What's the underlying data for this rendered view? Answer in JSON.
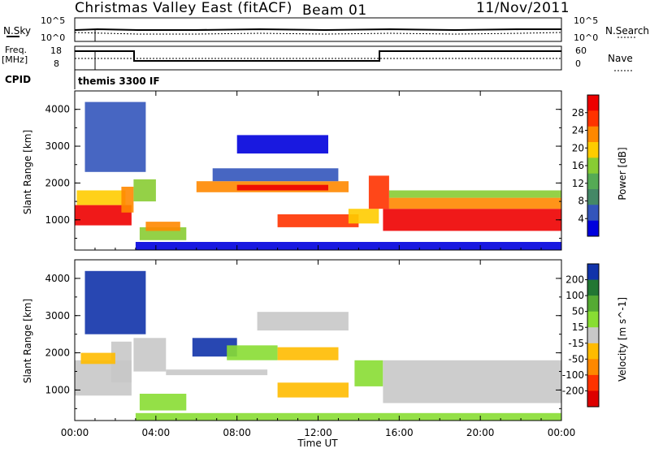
{
  "header": {
    "title": "Christmas Valley East (fitACF)",
    "beam": "Beam 01",
    "date": "11/Nov/2011"
  },
  "status_panels": {
    "nsky_label": "N.Sky",
    "nsky_ticks": [
      "10^5",
      "10^0"
    ],
    "nsearch_label": "N.Search",
    "nsearch_ticks": [
      "10^5",
      "10^0"
    ],
    "freq_label_1": "Freq.",
    "freq_label_2": "[MHz]",
    "freq_ticks": [
      "18",
      "8"
    ],
    "nave_label": "Nave",
    "nave_ticks": [
      "60",
      "0"
    ],
    "cpid_label": "CPID",
    "cpid_value": "themis 3300 IF"
  },
  "chart_data": [
    {
      "type": "heatmap",
      "panel": "power",
      "xlabel": "",
      "ylabel": "Slant Range [km]",
      "xlim": [
        0,
        24
      ],
      "ylim": [
        180,
        4500
      ],
      "yticks": [
        "1000",
        "2000",
        "3000",
        "4000"
      ],
      "colorbar_label": "Power [dB]",
      "colorbar_ticks": [
        "4",
        "8",
        "12",
        "16",
        "20",
        "24",
        "28"
      ],
      "colorbar_range": [
        0,
        32
      ],
      "colors": [
        "#0000dd",
        "#3355bb",
        "#448866",
        "#55aa55",
        "#88cc33",
        "#ffcc00",
        "#ff8800",
        "#ff3300",
        "#ee0000"
      ],
      "regions": [
        {
          "t0": 0.0,
          "t1": 2.8,
          "r0": 850,
          "r1": 1400,
          "c": 8
        },
        {
          "t0": 0.1,
          "t1": 2.5,
          "r0": 1400,
          "r1": 1800,
          "c": 5
        },
        {
          "t0": 2.3,
          "t1": 2.9,
          "r0": 1200,
          "r1": 1900,
          "c": 6
        },
        {
          "t0": 3.2,
          "t1": 5.5,
          "r0": 450,
          "r1": 800,
          "c": 4
        },
        {
          "t0": 3.5,
          "t1": 5.2,
          "r0": 700,
          "r1": 950,
          "c": 6
        },
        {
          "t0": 2.9,
          "t1": 4.0,
          "r0": 1500,
          "r1": 2100,
          "c": 4
        },
        {
          "t0": 6.0,
          "t1": 13.5,
          "r0": 1750,
          "r1": 2050,
          "c": 6
        },
        {
          "t0": 8.0,
          "t1": 12.5,
          "r0": 1800,
          "r1": 1950,
          "c": 8
        },
        {
          "t0": 6.8,
          "t1": 13.0,
          "r0": 2050,
          "r1": 2400,
          "c": 1
        },
        {
          "t0": 8.0,
          "t1": 12.5,
          "r0": 2800,
          "r1": 3300,
          "c": 0
        },
        {
          "t0": 10.0,
          "t1": 14.0,
          "r0": 800,
          "r1": 1150,
          "c": 7
        },
        {
          "t0": 13.5,
          "t1": 15.0,
          "r0": 900,
          "r1": 1300,
          "c": 5
        },
        {
          "t0": 14.5,
          "t1": 15.5,
          "r0": 1300,
          "r1": 2200,
          "c": 7
        },
        {
          "t0": 15.2,
          "t1": 24.0,
          "r0": 700,
          "r1": 1300,
          "c": 8
        },
        {
          "t0": 15.5,
          "t1": 24.0,
          "r0": 1300,
          "r1": 1600,
          "c": 6
        },
        {
          "t0": 15.5,
          "t1": 24.0,
          "r0": 1600,
          "r1": 1800,
          "c": 4
        },
        {
          "t0": 0.5,
          "t1": 3.5,
          "r0": 2300,
          "r1": 4200,
          "c": 1
        },
        {
          "t0": 3.0,
          "t1": 24.0,
          "r0": 180,
          "r1": 400,
          "c": 0
        }
      ]
    },
    {
      "type": "heatmap",
      "panel": "velocity",
      "xlabel": "Time UT",
      "ylabel": "Slant Range [km]",
      "xlim": [
        0,
        24
      ],
      "ylim": [
        180,
        4500
      ],
      "xticks": [
        "00:00",
        "04:00",
        "08:00",
        "12:00",
        "16:00",
        "20:00",
        "00:00"
      ],
      "yticks": [
        "1000",
        "2000",
        "3000",
        "4000"
      ],
      "colorbar_label": "Velocity [m s^-1]",
      "colorbar_ticks": [
        "200",
        "100",
        "50",
        "15",
        "-15",
        "-50",
        "-100",
        "-200"
      ],
      "colors": [
        "#1133aa",
        "#227733",
        "#55aa33",
        "#88dd33",
        "#c8c8c8",
        "#ffbb00",
        "#ff8800",
        "#ff3300",
        "#dd0000"
      ],
      "regions": [
        {
          "t0": 0.0,
          "t1": 2.8,
          "r0": 850,
          "r1": 1800,
          "c": 4
        },
        {
          "t0": 1.8,
          "t1": 2.8,
          "r0": 1200,
          "r1": 2300,
          "c": 4
        },
        {
          "t0": 0.3,
          "t1": 2.0,
          "r0": 1700,
          "r1": 2000,
          "c": 5
        },
        {
          "t0": 3.2,
          "t1": 5.5,
          "r0": 450,
          "r1": 900,
          "c": 3
        },
        {
          "t0": 2.9,
          "t1": 4.5,
          "r0": 1500,
          "r1": 2400,
          "c": 4
        },
        {
          "t0": 5.8,
          "t1": 8.0,
          "r0": 1900,
          "r1": 2400,
          "c": 0
        },
        {
          "t0": 7.5,
          "t1": 10.0,
          "r0": 1800,
          "r1": 2200,
          "c": 3
        },
        {
          "t0": 10.0,
          "t1": 13.0,
          "r0": 1800,
          "r1": 2150,
          "c": 5
        },
        {
          "t0": 9.0,
          "t1": 13.5,
          "r0": 2600,
          "r1": 3100,
          "c": 4
        },
        {
          "t0": 10.0,
          "t1": 13.5,
          "r0": 800,
          "r1": 1200,
          "c": 5
        },
        {
          "t0": 13.8,
          "t1": 15.2,
          "r0": 1100,
          "r1": 1800,
          "c": 3
        },
        {
          "t0": 15.2,
          "t1": 24.0,
          "r0": 650,
          "r1": 1800,
          "c": 4
        },
        {
          "t0": 4.5,
          "t1": 9.5,
          "r0": 1400,
          "r1": 1550,
          "c": 4
        },
        {
          "t0": 0.5,
          "t1": 3.5,
          "r0": 2500,
          "r1": 4200,
          "c": 0
        },
        {
          "t0": 3.0,
          "t1": 24.0,
          "r0": 180,
          "r1": 380,
          "c": 3
        }
      ]
    }
  ]
}
